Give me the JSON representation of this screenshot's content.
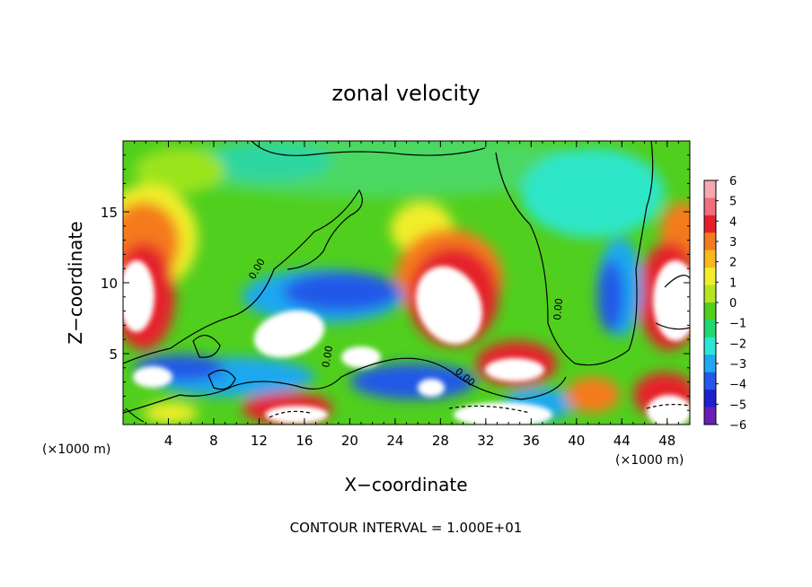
{
  "chart_data": {
    "type": "heatmap",
    "title": "zonal velocity",
    "xlabel": "X−coordinate",
    "ylabel": "Z−coordinate",
    "x_scale_note_left": "(×1000 m)",
    "x_scale_note_right": "(×1000 m)",
    "footer": "CONTOUR INTERVAL = 1.000E+01",
    "xlim": [
      0,
      50
    ],
    "ylim": [
      0,
      20
    ],
    "x_ticks": [
      4,
      8,
      12,
      16,
      20,
      24,
      28,
      32,
      36,
      40,
      44,
      48
    ],
    "y_ticks": [
      5,
      10,
      15
    ],
    "contour_label": "0.00",
    "colorbar": {
      "range": [
        -6,
        6
      ],
      "tick_labels": [
        "6",
        "5",
        "4",
        "3",
        "2",
        "1",
        "0",
        "−1",
        "−2",
        "−3",
        "−4",
        "−5",
        "−6"
      ],
      "colors": [
        "#f5a8b0",
        "#f26d7d",
        "#e5202b",
        "#f57a1e",
        "#f8b81e",
        "#f0ee2a",
        "#b6e41e",
        "#50cf1e",
        "#22d873",
        "#2ee6d6",
        "#1ea8f0",
        "#2458e8",
        "#1e20d0",
        "#6a1fb4"
      ]
    },
    "features": [
      {
        "name": "white patch (>6)",
        "x": 1.8,
        "z": 8.5
      },
      {
        "name": "white patch (>6)",
        "x": 15,
        "z": 6.5
      },
      {
        "name": "white patch (>6)",
        "x": 21,
        "z": 4.5
      },
      {
        "name": "white patch (>6)",
        "x": 29,
        "z": 8.5
      },
      {
        "name": "white patch (>6)",
        "x": 34.5,
        "z": 3.8
      },
      {
        "name": "white patch (>6)",
        "x": 48,
        "z": 8.5
      },
      {
        "name": "white patch (>6)",
        "x": 47,
        "z": 1.8
      },
      {
        "name": "white patch (>6)",
        "x": 32,
        "z": 1.2
      },
      {
        "name": "white patch (>6)",
        "x": 2.5,
        "z": 3
      },
      {
        "name": "white patch (>6)",
        "x": 14,
        "z": 1
      },
      {
        "name": "white patch (>6)",
        "x": 27,
        "z": 3.2
      }
    ]
  }
}
